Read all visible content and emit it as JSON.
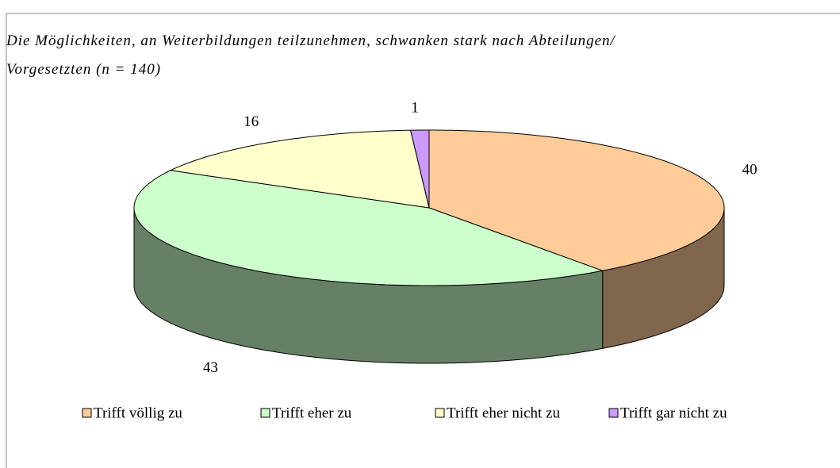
{
  "chart_data": {
    "type": "pie",
    "title": [
      "Die Möglichkeiten, an Weiterbildungen teilzunehmen, schwanken stark nach Abteilungen/",
      "Vorgesetzten (n = 140)"
    ],
    "categories": [
      "Trifft völlig zu",
      "Trifft eher zu",
      "Trifft eher nicht zu",
      "Trifft gar nicht zu"
    ],
    "values": [
      40,
      43,
      16,
      1
    ],
    "colors": [
      "#ffcc99",
      "#ccffcc",
      "#ffffcc",
      "#cc99ff"
    ],
    "legend": "bottom"
  }
}
